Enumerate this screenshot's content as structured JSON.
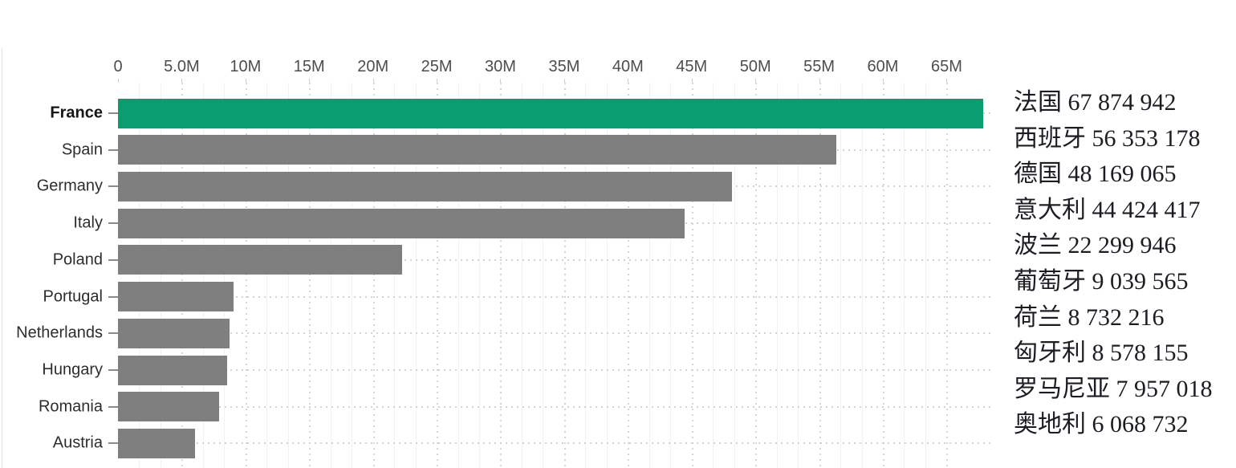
{
  "chart_data": {
    "type": "bar",
    "orientation": "horizontal",
    "title": "",
    "categories": [
      "France",
      "Spain",
      "Germany",
      "Italy",
      "Poland",
      "Portugal",
      "Netherlands",
      "Hungary",
      "Romania",
      "Austria"
    ],
    "values": [
      67874942,
      56353178,
      48169065,
      44424417,
      22299946,
      9039565,
      8732216,
      8578155,
      7957018,
      6068732
    ],
    "highlight_category": "France",
    "x_axis": {
      "position": "top",
      "ticks": [
        "0",
        "5.0M",
        "10M",
        "15M",
        "20M",
        "25M",
        "30M",
        "35M",
        "40M",
        "45M",
        "50M",
        "55M",
        "60M",
        "65M"
      ],
      "tick_values": [
        0,
        5000000,
        10000000,
        15000000,
        20000000,
        25000000,
        30000000,
        35000000,
        40000000,
        45000000,
        50000000,
        55000000,
        60000000,
        65000000
      ],
      "xlim": [
        0,
        68500000
      ]
    },
    "grid": "dotted",
    "legend_position": "none",
    "colors": {
      "highlight": "#0a9d72",
      "default": "#7f7f7f",
      "gridline": "#d6d6d6",
      "axis_text": "#4d4d4d",
      "category_text": "#2d2d2d",
      "value_text": "#1c1c24"
    }
  },
  "value_panel": {
    "items": [
      {
        "name_zh": "法国",
        "value_formatted": "67 874 942",
        "text": "法国 67 874 942"
      },
      {
        "name_zh": "西班牙",
        "value_formatted": "56 353 178",
        "text": "西班牙 56 353 178"
      },
      {
        "name_zh": "德国",
        "value_formatted": "48 169 065",
        "text": "德国 48 169 065"
      },
      {
        "name_zh": "意大利",
        "value_formatted": "44 424 417",
        "text": "意大利 44 424 417"
      },
      {
        "name_zh": "波兰",
        "value_formatted": "22 299 946",
        "text": "波兰 22 299 946"
      },
      {
        "name_zh": "葡萄牙",
        "value_formatted": "9 039 565",
        "text": "葡萄牙 9 039 565"
      },
      {
        "name_zh": "荷兰",
        "value_formatted": "8 732 216",
        "text": "荷兰 8 732 216"
      },
      {
        "name_zh": "匈牙利",
        "value_formatted": "8 578 155",
        "text": "匈牙利 8 578 155"
      },
      {
        "name_zh": "罗马尼亚",
        "value_formatted": "7 957 018",
        "text": "罗马尼亚 7 957 018"
      },
      {
        "name_zh": "奥地利",
        "value_formatted": "6 068 732",
        "text": "奥地利 6 068 732"
      }
    ]
  }
}
